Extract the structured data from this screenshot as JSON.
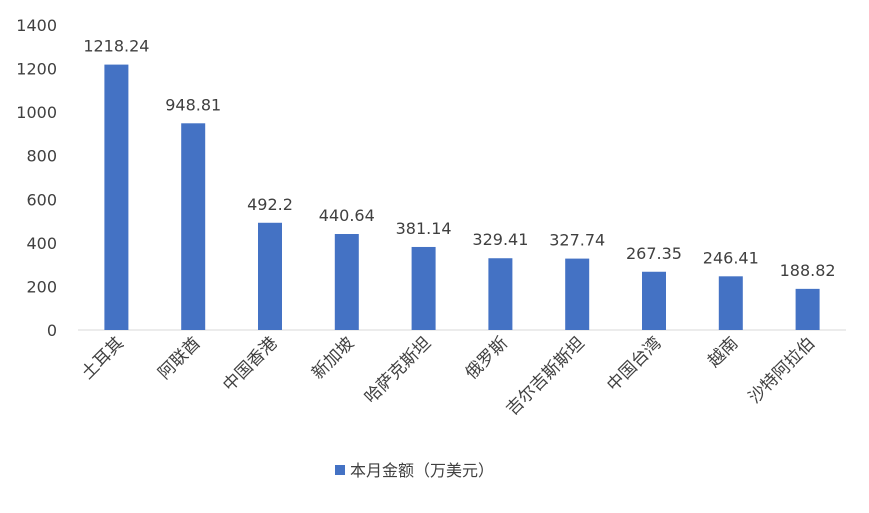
{
  "chart_data": {
    "type": "bar",
    "categories": [
      "土耳其",
      "阿联酋",
      "中国香港",
      "新加坡",
      "哈萨克斯坦",
      "俄罗斯",
      "吉尔吉斯斯坦",
      "中国台湾",
      "越南",
      "沙特阿拉伯"
    ],
    "series": [
      {
        "name": "本月金额（万美元）",
        "values": [
          1218.24,
          948.81,
          492.2,
          440.64,
          381.14,
          329.41,
          327.74,
          267.35,
          246.41,
          188.82
        ]
      }
    ],
    "data_labels": [
      "1218.24",
      "948.81",
      "492.2",
      "440.64",
      "381.14",
      "329.41",
      "327.74",
      "267.35",
      "246.41",
      "188.82"
    ],
    "yticks": [
      "0",
      "200",
      "400",
      "600",
      "800",
      "1000",
      "1200",
      "1400"
    ],
    "ylim": [
      0,
      1400
    ],
    "grid": false,
    "legend_position": "bottom",
    "colors": {
      "bar": "#4472C4",
      "axis": "#D9D9D9"
    }
  }
}
